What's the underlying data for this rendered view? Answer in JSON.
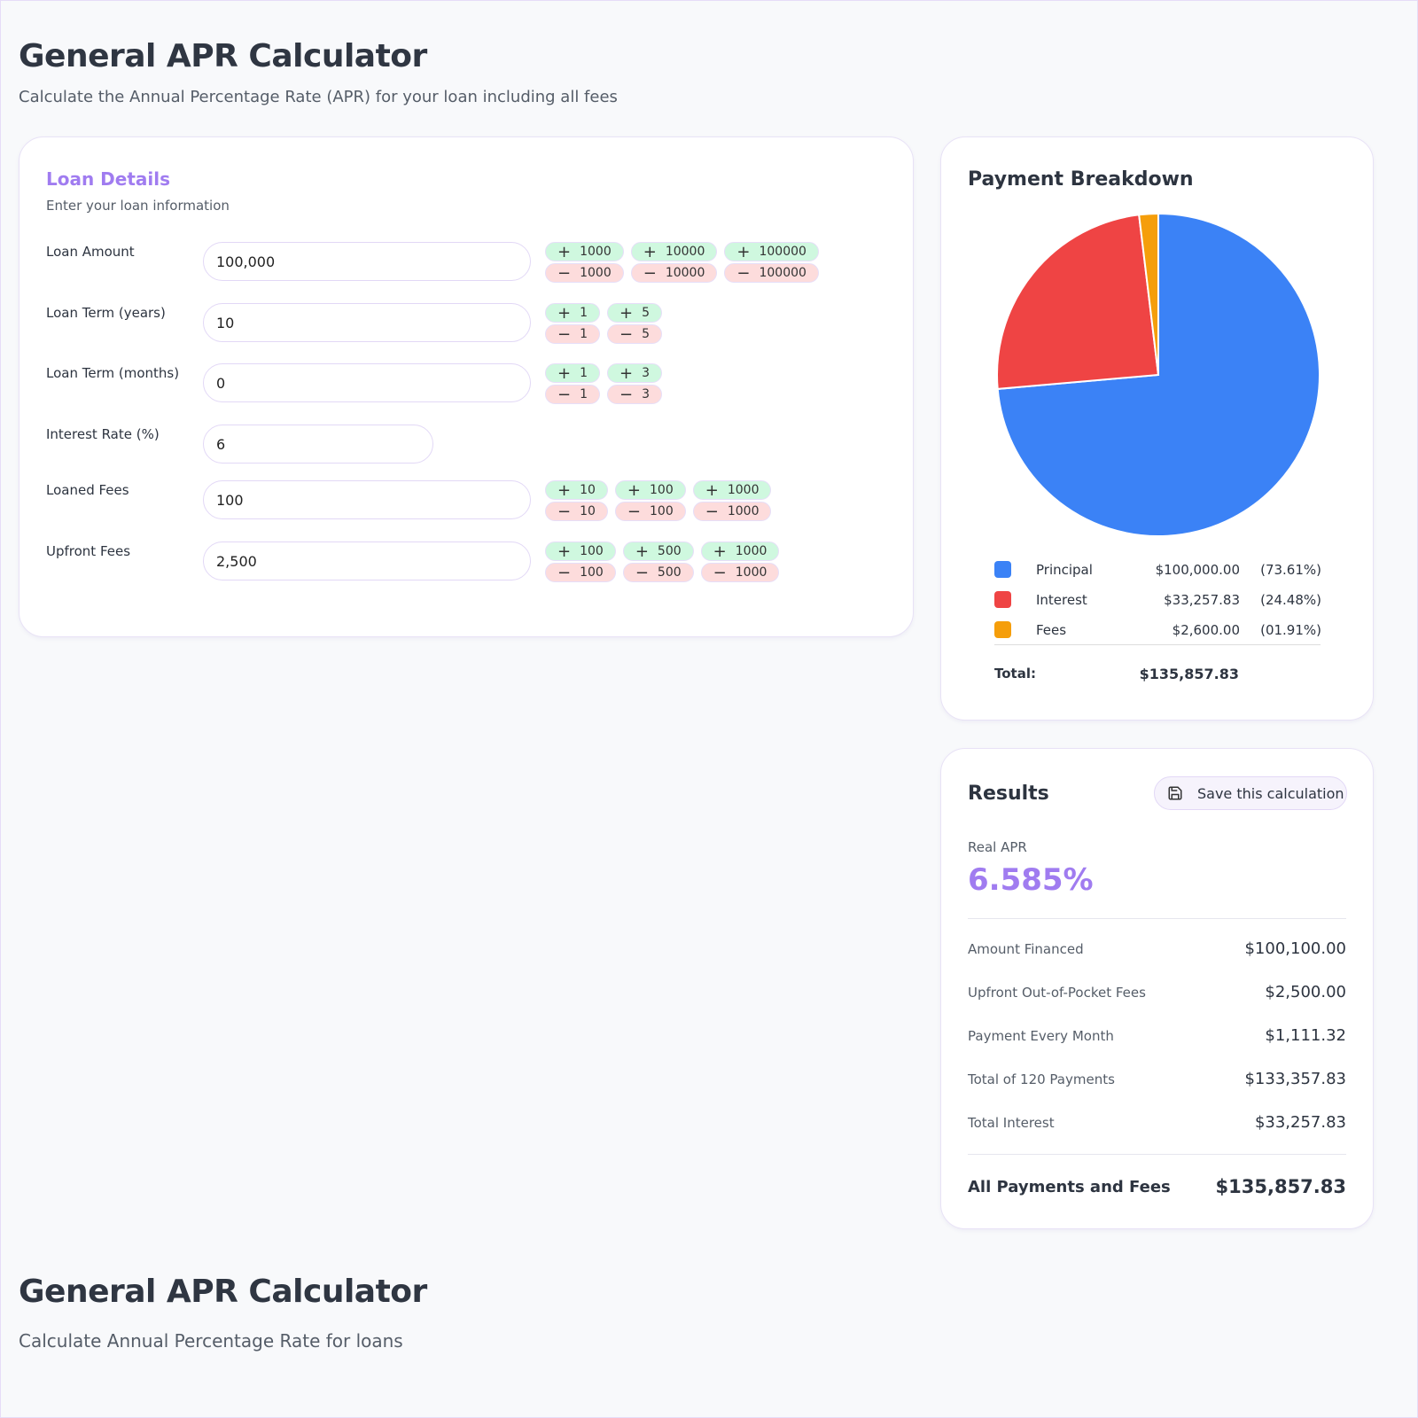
{
  "header": {
    "title": "General APR Calculator",
    "subtitle": "Calculate the Annual Percentage Rate (APR) for your loan including all fees"
  },
  "loan": {
    "title": "Loan Details",
    "subtitle": "Enter your loan information",
    "fields": [
      {
        "label": "Loan Amount",
        "value": "100,000",
        "steps": [
          "1000",
          "10000",
          "100000"
        ]
      },
      {
        "label": "Loan Term (years)",
        "value": "10",
        "steps": [
          "1",
          "5"
        ]
      },
      {
        "label": "Loan Term (months)",
        "value": "0",
        "steps": [
          "1",
          "3"
        ]
      },
      {
        "label": "Interest Rate (%)",
        "value": "6",
        "steps": []
      },
      {
        "label": "Loaned Fees",
        "value": "100",
        "steps": [
          "10",
          "100",
          "1000"
        ]
      },
      {
        "label": "Upfront Fees",
        "value": "2,500",
        "steps": [
          "100",
          "500",
          "1000"
        ]
      }
    ]
  },
  "chart_data": {
    "type": "pie",
    "title": "Payment Breakdown",
    "slices": [
      {
        "name": "Principal",
        "value": 100000.0,
        "display": "$100,000.00",
        "percent": "(73.61%)",
        "color": "#3b82f6"
      },
      {
        "name": "Interest",
        "value": 33257.83,
        "display": "$33,257.83",
        "percent": "(24.48%)",
        "color": "#ef4444"
      },
      {
        "name": "Fees",
        "value": 2600.0,
        "display": "$2,600.00",
        "percent": "(01.91%)",
        "color": "#f59e0b"
      }
    ],
    "total_label": "Total:",
    "total": "$135,857.83"
  },
  "results": {
    "title": "Results",
    "save_label": "Save this calculation",
    "apr_label": "Real APR",
    "apr": "6.585%",
    "rows": [
      {
        "k": "Amount Financed",
        "v": "$100,100.00"
      },
      {
        "k": "Upfront Out-of-Pocket Fees",
        "v": "$2,500.00"
      },
      {
        "k": "Payment Every Month",
        "v": "$1,111.32"
      },
      {
        "k": "Total of 120 Payments",
        "v": "$133,357.83"
      },
      {
        "k": "Total Interest",
        "v": "$33,257.83"
      }
    ],
    "total_k": "All Payments and Fees",
    "total_v": "$135,857.83"
  },
  "footer": {
    "title": "General APR Calculator",
    "subtitle": "Calculate Annual Percentage Rate for loans"
  },
  "colors": {
    "accent": "#a07cf0"
  }
}
